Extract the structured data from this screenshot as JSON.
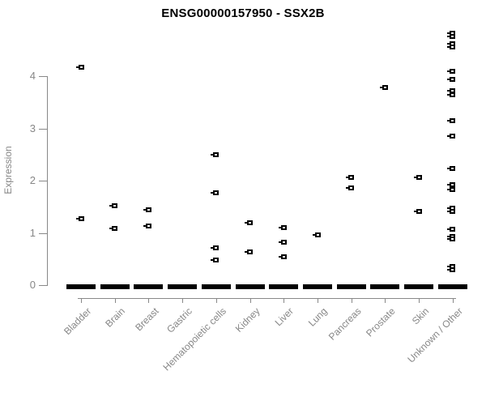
{
  "title": "ENSG00000157950 - SSX2B",
  "chart_data": {
    "type": "scatter",
    "title": "ENSG00000157950 - SSX2B",
    "xlabel": "",
    "ylabel": "Expression",
    "ylim": [
      0,
      4.9
    ],
    "yticks": [
      0,
      1,
      2,
      3,
      4
    ],
    "grid": false,
    "legend": "none",
    "marker": "black-square-with-slot",
    "categories": [
      "Bladder",
      "Brain",
      "Breast",
      "Gastric",
      "Hematopoietic cells",
      "Kidney",
      "Liver",
      "Lung",
      "Pancreas",
      "Prostate",
      "Skin",
      "Unknown / Other"
    ],
    "groups": [
      {
        "category": "Bladder",
        "points": [
          4.17,
          1.27
        ],
        "zero_cluster": true
      },
      {
        "category": "Brain",
        "points": [
          1.52,
          1.09
        ],
        "zero_cluster": true
      },
      {
        "category": "Breast",
        "points": [
          1.44,
          1.13
        ],
        "zero_cluster": true
      },
      {
        "category": "Gastric",
        "points": [],
        "zero_cluster": true
      },
      {
        "category": "Hematopoietic cells",
        "points": [
          2.5,
          1.76,
          0.72,
          0.48
        ],
        "zero_cluster": true
      },
      {
        "category": "Kidney",
        "points": [
          1.19,
          0.64
        ],
        "zero_cluster": true
      },
      {
        "category": "Liver",
        "points": [
          1.1,
          0.82,
          0.55
        ],
        "zero_cluster": true
      },
      {
        "category": "Lung",
        "points": [
          0.96
        ],
        "zero_cluster": true
      },
      {
        "category": "Pancreas",
        "points": [
          2.06,
          1.86
        ],
        "zero_cluster": true
      },
      {
        "category": "Prostate",
        "points": [
          3.78
        ],
        "zero_cluster": true
      },
      {
        "category": "Skin",
        "points": [
          2.06,
          1.41
        ],
        "zero_cluster": true
      },
      {
        "category": "Unknown / Other",
        "points": [
          4.82,
          4.76,
          4.62,
          4.56,
          4.09,
          3.94,
          3.72,
          3.64,
          3.15,
          2.85,
          2.23,
          1.92,
          1.83,
          1.47,
          1.41,
          1.07,
          0.93,
          0.89,
          0.36,
          0.29
        ],
        "zero_cluster": true
      }
    ],
    "colors": {
      "marker": "#000000",
      "axis": "#888888",
      "label_text": "#878787",
      "title_text": "#000000",
      "background": "#ffffff"
    }
  }
}
